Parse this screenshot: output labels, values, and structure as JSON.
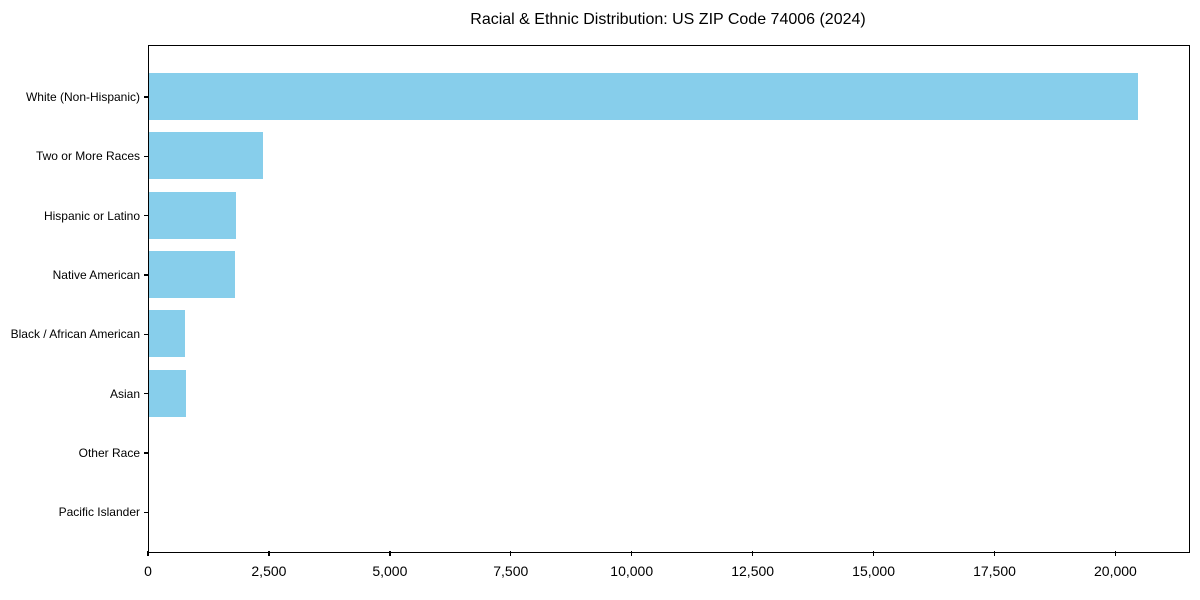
{
  "chart_data": {
    "type": "bar",
    "orientation": "horizontal",
    "title": "Racial & Ethnic Distribution: US ZIP Code 74006 (2024)",
    "categories": [
      "White (Non-Hispanic)",
      "Two or More Races",
      "Hispanic or Latino",
      "Native American",
      "Black / African American",
      "Asian",
      "Other Race",
      "Pacific Islander"
    ],
    "values": [
      20440,
      2350,
      1800,
      1770,
      750,
      770,
      0,
      0
    ],
    "x_ticks": [
      0,
      2500,
      5000,
      7500,
      10000,
      12500,
      15000,
      17500,
      20000
    ],
    "x_tick_labels": [
      "0",
      "2,500",
      "5,000",
      "7,500",
      "10,000",
      "12,500",
      "15,000",
      "17,500",
      "20,000"
    ],
    "xlim": [
      0,
      21500
    ],
    "xlabel": "",
    "ylabel": "",
    "grid": false,
    "legend": false,
    "bar_color": "#87CEEB",
    "axis_color": "#000000",
    "background_color": "#ffffff"
  }
}
